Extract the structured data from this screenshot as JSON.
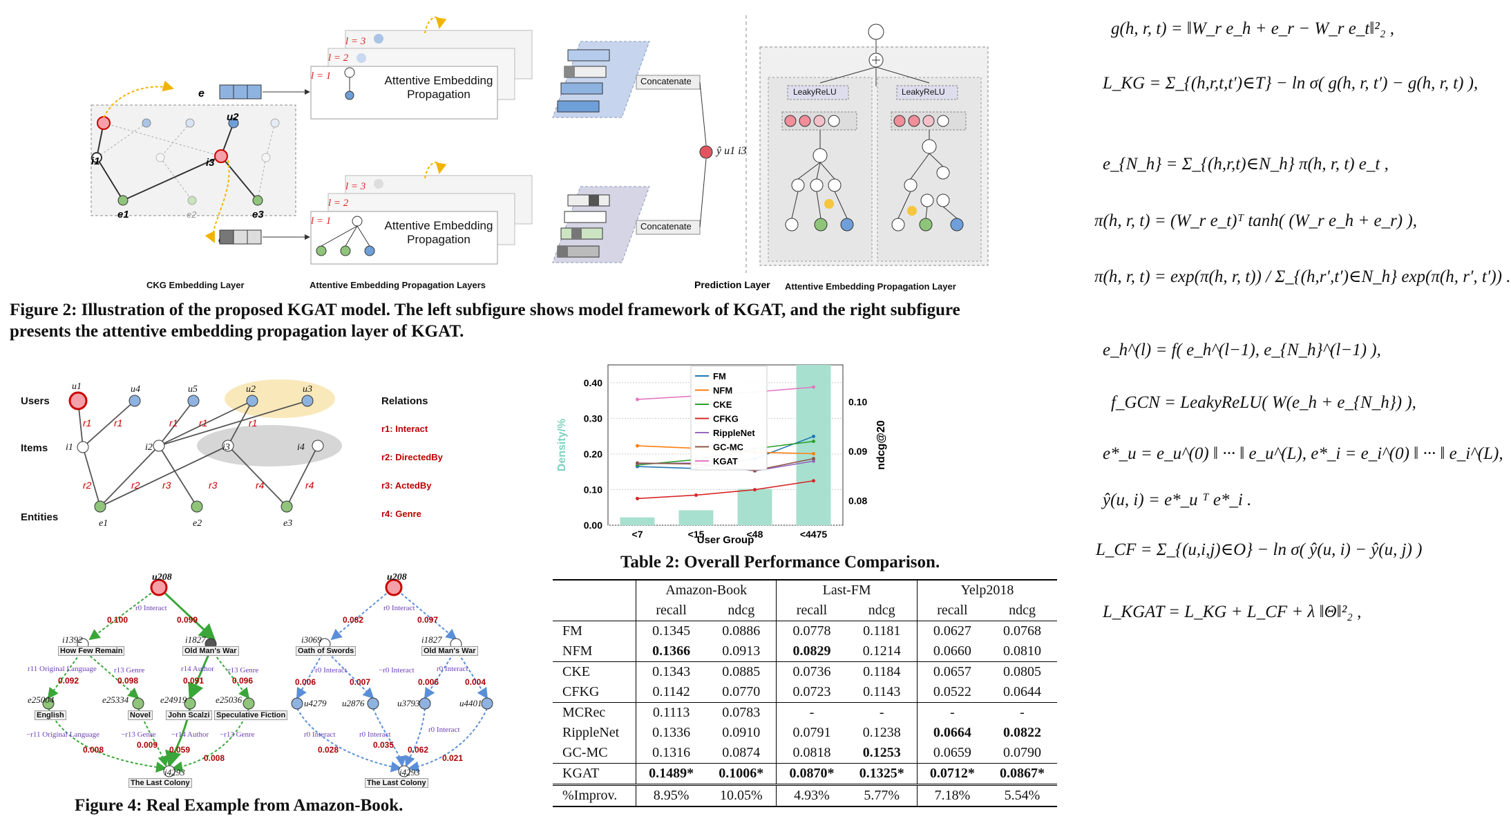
{
  "figure2": {
    "caption": "Figure 2: Illustration of the proposed KGAT model. The left subfigure shows model framework of KGAT, and the right subfigure presents the attentive embedding propagation layer of KGAT.",
    "caption_line1": "Figure 2: Illustration of the proposed KGAT model. The left subfigure shows model framework of KGAT, and the right subfigure",
    "caption_line2": "presents the attentive embedding propagation layer of KGAT.",
    "labels": {
      "ckg": "CKG Embedding Layer",
      "aepl": "Attentive Embedding Propagation Layers",
      "pred": "Prediction Layer",
      "aepl_right": "Attentive Embedding Propagation Layer",
      "aep_box_line1": "Attentive Embedding",
      "aep_box_line2": "Propagation",
      "concat": "Concatenate",
      "leaky": "LeakyReLU",
      "l1": "l = 1",
      "l2": "l = 2",
      "l3": "l = 3",
      "yhat": "ŷ u1 i3"
    }
  },
  "figure3": {
    "users_label": "Users",
    "items_label": "Items",
    "entities_label": "Entities",
    "relations_title": "Relations",
    "relations": [
      "r1: Interact",
      "r2: DirectedBy",
      "r3: ActedBy",
      "r4: Genre"
    ],
    "users": [
      "u1",
      "u4",
      "u5",
      "u2",
      "u3"
    ],
    "items": [
      "i1",
      "i2",
      "i3",
      "i4"
    ],
    "entities": [
      "e1",
      "e2",
      "e3"
    ]
  },
  "figure4": {
    "caption": "Figure 4: Real Example from Amazon-Book.",
    "user": "u208",
    "left": {
      "item_a": "i1392",
      "item_a_title": "How Few Remain",
      "item_b": "i1827",
      "item_b_title": "Old Man's War",
      "target": "i4293",
      "target_title": "The Last Colony",
      "entities": [
        {
          "id": "e25004",
          "name": "English"
        },
        {
          "id": "e25334",
          "name": "Novel"
        },
        {
          "id": "e24919",
          "name": "John Scalzi"
        },
        {
          "id": "e25036",
          "name": "Speculative Fiction"
        }
      ],
      "weights": [
        "0.100",
        "0.099",
        "0.092",
        "0.098",
        "0.091",
        "0.096",
        "0.008",
        "0.009",
        "0.059",
        "0.008"
      ],
      "relations": [
        "r0 Interact",
        "r11 Original Language",
        "r13 Genre",
        "r14 Author",
        "r13 Genre",
        "−r11 Original Language",
        "−r13 Genre",
        "−r14 Author",
        "−r13 Genre"
      ]
    },
    "right": {
      "item_a": "i3069",
      "item_a_title": "Oath of Swords",
      "item_b": "i1827",
      "item_b_title": "Old Man's War",
      "target": "i4293",
      "target_title": "The Last Colony",
      "users": [
        "u4279",
        "u2876",
        "u3793",
        "u4401"
      ],
      "weights": [
        "0.082",
        "0.097",
        "0.006",
        "0.007",
        "0.006",
        "0.004",
        "0.028",
        "0.035",
        "0.062",
        "0.021"
      ],
      "relations": [
        "r0 Interact",
        "r0 Interact",
        "−r0 Interact",
        "−r0 Interact",
        "r0 Interact",
        "r0 Interact",
        "r0 Interact"
      ]
    }
  },
  "chart_data": {
    "type": "bar",
    "categories": [
      "<7",
      "<15",
      "<48",
      "<4475"
    ],
    "xlabel": "User Group",
    "ylabel": "Density/%",
    "y2label": "ndcg@20",
    "ylim": [
      0,
      0.45
    ],
    "y2lim": [
      0.075,
      0.1075
    ],
    "yticks": [
      "0.00",
      "0.10",
      "0.20",
      "0.30",
      "0.40"
    ],
    "y2ticks": [
      "0.08",
      "0.09",
      "0.10"
    ],
    "bar_color": "#a8e0cf",
    "values": [
      0.022,
      0.042,
      0.102,
      0.46
    ],
    "series": [
      {
        "name": "FM",
        "color": "#1f77b4",
        "values": [
          0.0869,
          0.0865,
          0.0885,
          0.093
        ]
      },
      {
        "name": "NFM",
        "color": "#ff7f0e",
        "values": [
          0.0911,
          0.0906,
          0.0898,
          0.0895
        ]
      },
      {
        "name": "CKE",
        "color": "#2ca02c",
        "values": [
          0.0872,
          0.0883,
          0.0905,
          0.092
        ]
      },
      {
        "name": "CFKG",
        "color": "#d62728",
        "values": [
          0.0804,
          0.0811,
          0.0822,
          0.084
        ]
      },
      {
        "name": "RippleNet",
        "color": "#9467bd",
        "values": [
          0.0875,
          0.0876,
          0.086,
          0.088
        ]
      },
      {
        "name": "GC-MC",
        "color": "#8c564b",
        "values": [
          0.0876,
          0.0874,
          0.0861,
          0.0885
        ]
      },
      {
        "name": "KGAT",
        "color": "#e377c2",
        "values": [
          0.1005,
          0.1012,
          0.102,
          0.103
        ]
      }
    ],
    "legend": "top-right"
  },
  "table2": {
    "caption": "Table 2: Overall Performance Comparison.",
    "datasets": [
      "Amazon-Book",
      "Last-FM",
      "Yelp2018"
    ],
    "metrics": [
      "recall",
      "ndcg",
      "recall",
      "ndcg",
      "recall",
      "ndcg"
    ],
    "rows": [
      {
        "model": "FM",
        "vals": [
          "0.1345",
          "0.0886",
          "0.0778",
          "0.1181",
          "0.0627",
          "0.0768"
        ],
        "bold": []
      },
      {
        "model": "NFM",
        "vals": [
          "0.1366",
          "0.0913",
          "0.0829",
          "0.1214",
          "0.0660",
          "0.0810"
        ],
        "bold": [
          0,
          2
        ]
      },
      {
        "model": "CKE",
        "vals": [
          "0.1343",
          "0.0885",
          "0.0736",
          "0.1184",
          "0.0657",
          "0.0805"
        ],
        "bold": []
      },
      {
        "model": "CFKG",
        "vals": [
          "0.1142",
          "0.0770",
          "0.0723",
          "0.1143",
          "0.0522",
          "0.0644"
        ],
        "bold": []
      },
      {
        "model": "MCRec",
        "vals": [
          "0.1113",
          "0.0783",
          "-",
          "-",
          "-",
          "-"
        ],
        "bold": []
      },
      {
        "model": "RippleNet",
        "vals": [
          "0.1336",
          "0.0910",
          "0.0791",
          "0.1238",
          "0.0664",
          "0.0822"
        ],
        "bold": [
          4,
          5
        ]
      },
      {
        "model": "GC-MC",
        "vals": [
          "0.1316",
          "0.0874",
          "0.0818",
          "0.1253",
          "0.0659",
          "0.0790"
        ],
        "bold": [
          3
        ]
      },
      {
        "model": "KGAT",
        "vals": [
          "0.1489*",
          "0.1006*",
          "0.0870*",
          "0.1325*",
          "0.0712*",
          "0.0867*"
        ],
        "bold": [
          0,
          1,
          2,
          3,
          4,
          5
        ]
      },
      {
        "model": "%Improv.",
        "vals": [
          "8.95%",
          "10.05%",
          "4.93%",
          "5.77%",
          "7.18%",
          "5.54%"
        ],
        "bold": []
      }
    ]
  },
  "equations": [
    "g(h, r, t) = ‖W_r e_h + e_r − W_r e_t‖²₂ ,",
    "L_KG = Σ_{(h,r,t,t′)∈T} − ln σ( g(h, r, t′) − g(h, r, t) ),",
    "e_{N_h} = Σ_{(h,r,t)∈N_h} π(h, r, t) e_t ,",
    "π(h, r, t) = (W_r e_t)ᵀ tanh( (W_r e_h + e_r) ),",
    "π(h, r, t) = exp(π(h, r, t)) / Σ_{(h,r′,t′)∈N_h} exp(π(h, r′, t′)) .",
    "e_h^(l) = f( e_h^(l−1), e_{N_h}^(l−1) ),",
    "f_GCN = LeakyReLU( W(e_h + e_{N_h}) ),",
    "e*_u = e_u^(0) ‖ ··· ‖ e_u^(L),   e*_i = e_i^(0) ‖ ··· ‖ e_i^(L),",
    "ŷ(u, i) = e*_u ᵀ e*_i .",
    "L_CF = Σ_{(u,i,j)∈O} − ln σ( ŷ(u, i) − ŷ(u, j) )",
    "L_KGAT = L_KG + L_CF + λ ‖Θ‖²₂ ,"
  ]
}
